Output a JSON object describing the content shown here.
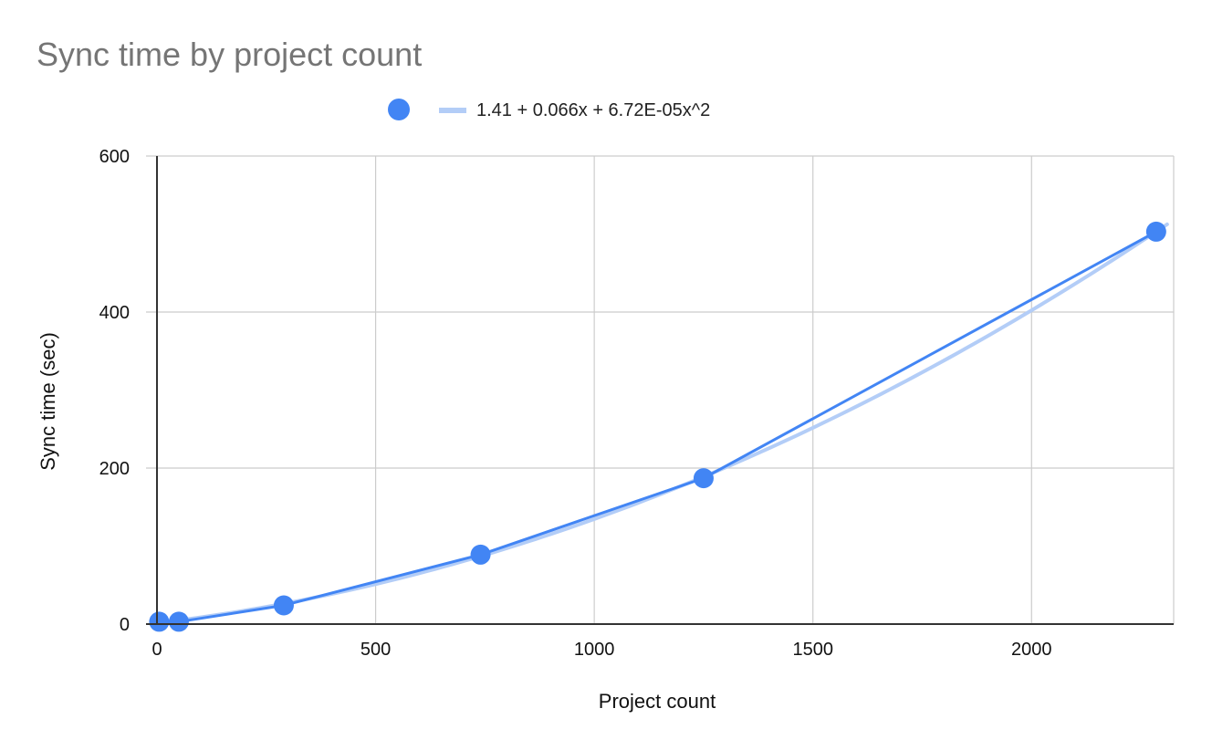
{
  "chart_data": {
    "type": "scatter",
    "title": "Sync time by project count",
    "xlabel": "Project count",
    "ylabel": "Sync time (sec)",
    "xlim": [
      0,
      2325
    ],
    "ylim": [
      0,
      600
    ],
    "x_ticks": [
      0,
      500,
      1000,
      1500,
      2000
    ],
    "y_ticks": [
      0,
      200,
      400,
      600
    ],
    "grid": true,
    "legend_position": "top",
    "series": [
      {
        "color": "#4285f4",
        "connect_points": true,
        "x": [
          5,
          50,
          290,
          740,
          1250,
          2285
        ],
        "y": [
          3,
          3,
          24,
          89,
          187,
          503
        ]
      }
    ],
    "trendline": {
      "name": "1.41 + 0.066x + 6.72E-05x^2",
      "kind": "polynomial",
      "coefficients": [
        1.41,
        0.066,
        6.72e-05
      ],
      "x_range": [
        0,
        2310
      ],
      "color": "#b3cdf7"
    },
    "colors": {
      "grid": "#cccccc",
      "axis": "#333333"
    }
  }
}
